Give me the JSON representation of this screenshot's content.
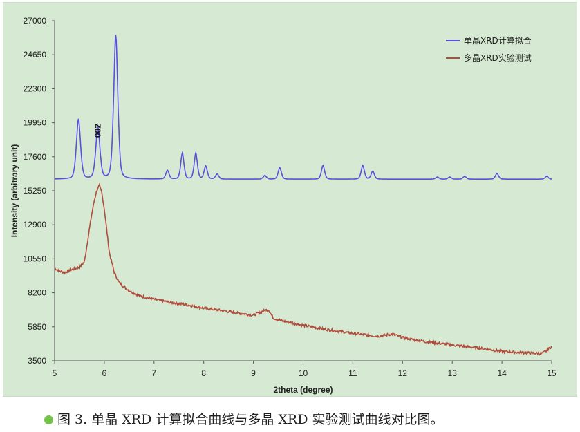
{
  "caption": "图 3. 单晶 XRD 计算拟合曲线与多晶 XRD 实验测试曲线对比图。",
  "colors": {
    "panel_background": "#d6ead3",
    "calculated_series": "#5a4fe0",
    "experimental_series": "#b24c3c",
    "caption_bullet": "#73c24a"
  },
  "chart_data": {
    "type": "line",
    "title": "",
    "xlabel": "2theta (degree)",
    "ylabel": "Intensity (arbitrary unit)",
    "xlim": [
      5,
      15
    ],
    "ylim": [
      3500,
      27000
    ],
    "x_ticks": [
      "5",
      "6",
      "7",
      "8",
      "9",
      "10",
      "11",
      "12",
      "13",
      "14",
      "15"
    ],
    "y_ticks": [
      "3500",
      "5850",
      "8200",
      "10550",
      "12900",
      "15250",
      "17600",
      "19950",
      "22300",
      "24650",
      "27000"
    ],
    "grid": false,
    "legend_position": "top-right",
    "annotations": [
      {
        "text": "002",
        "x": 5.87,
        "y": 19400
      }
    ],
    "series": [
      {
        "name": "单晶XRD计算拟合",
        "color": "#5a4fe0",
        "baseline": 16050,
        "peaks": [
          {
            "x": 5.48,
            "height": 20200
          },
          {
            "x": 5.87,
            "height": 19600
          },
          {
            "x": 6.23,
            "height": 26000
          },
          {
            "x": 7.27,
            "height": 16650
          },
          {
            "x": 7.57,
            "height": 17850
          },
          {
            "x": 7.84,
            "height": 17850
          },
          {
            "x": 8.04,
            "height": 16950
          },
          {
            "x": 8.27,
            "height": 16400
          },
          {
            "x": 9.23,
            "height": 16300
          },
          {
            "x": 9.53,
            "height": 16850
          },
          {
            "x": 10.4,
            "height": 17000
          },
          {
            "x": 11.2,
            "height": 17000
          },
          {
            "x": 11.4,
            "height": 16600
          },
          {
            "x": 12.7,
            "height": 16200
          },
          {
            "x": 12.95,
            "height": 16200
          },
          {
            "x": 13.25,
            "height": 16250
          },
          {
            "x": 13.9,
            "height": 16450
          },
          {
            "x": 14.9,
            "height": 16250
          }
        ]
      },
      {
        "name": "多晶XRD实验测试",
        "color": "#b24c3c",
        "x": [
          5.0,
          5.1,
          5.2,
          5.3,
          5.4,
          5.5,
          5.6,
          5.7,
          5.75,
          5.8,
          5.85,
          5.9,
          5.95,
          6.0,
          6.05,
          6.1,
          6.2,
          6.3,
          6.4,
          6.5,
          6.7,
          7.0,
          7.3,
          7.6,
          8.0,
          8.5,
          9.0,
          9.2,
          9.3,
          9.4,
          9.6,
          10.0,
          10.5,
          11.0,
          11.5,
          11.8,
          12.0,
          12.5,
          13.0,
          13.5,
          14.0,
          14.5,
          14.8,
          14.9,
          15.0
        ],
        "values": [
          9900,
          9700,
          9600,
          9750,
          9850,
          9950,
          10350,
          12600,
          13700,
          14600,
          15300,
          15600,
          15100,
          14000,
          12500,
          11000,
          9600,
          8900,
          8600,
          8350,
          8000,
          7750,
          7550,
          7400,
          7150,
          6900,
          6650,
          6950,
          7050,
          6450,
          6250,
          5950,
          5650,
          5400,
          5200,
          5350,
          5100,
          4800,
          4600,
          4400,
          4150,
          4050,
          4000,
          4200,
          4500
        ]
      }
    ]
  }
}
